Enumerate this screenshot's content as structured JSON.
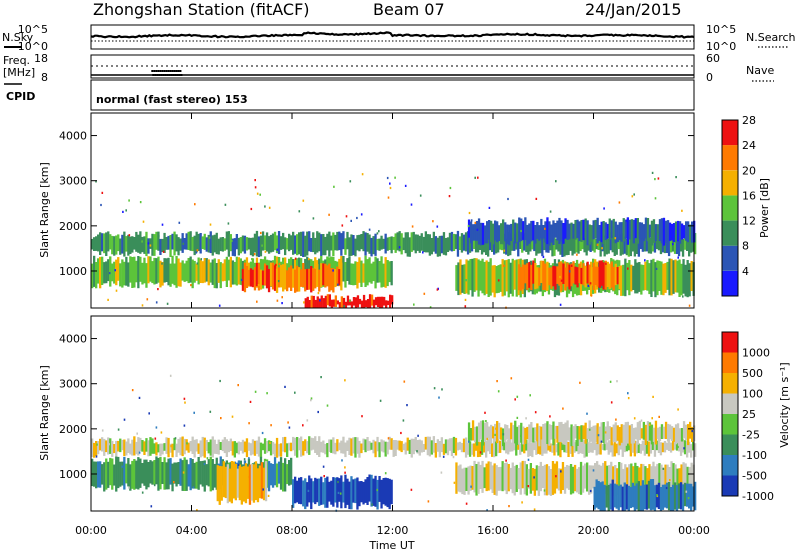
{
  "header": {
    "station": "Zhongshan Station (fitACF)",
    "beam": "Beam 07",
    "date": "24/Jan/2015"
  },
  "top_panel_a": {
    "left_label": "N.Sky",
    "right_label": "N.Search",
    "left_ticks": [
      "10^5",
      "10^0"
    ],
    "right_ticks": [
      "10^5",
      "10^0"
    ]
  },
  "top_panel_b": {
    "left_label_1": "Freq.",
    "left_label_2": "[MHz]",
    "right_label": "Nave",
    "left_ticks": [
      "18",
      "8"
    ],
    "right_ticks": [
      "60",
      "0"
    ]
  },
  "cpid": {
    "label": "CPID",
    "text": "normal (fast stereo) 153"
  },
  "panels": {
    "ylabel": "Slant Range [km]",
    "yticks": [
      "1000",
      "2000",
      "3000",
      "4000"
    ],
    "xticks": [
      "00:00",
      "04:00",
      "08:00",
      "12:00",
      "16:00",
      "20:00",
      "00:00"
    ],
    "xlabel": "Time UT"
  },
  "power_colorbar": {
    "label": "Power [dB]",
    "ticks": [
      "4",
      "8",
      "12",
      "16",
      "20",
      "24",
      "28"
    ],
    "colors": [
      "#1a1aff",
      "#2b55b5",
      "#3a8e5a",
      "#5cc43a",
      "#f5b000",
      "#ff7a00",
      "#ee1111"
    ]
  },
  "velocity_colorbar": {
    "label": "Velocity [m s⁻¹]",
    "ticks": [
      "1000",
      "500",
      "100",
      "25",
      "-25",
      "-100",
      "-500",
      "-1000"
    ],
    "colors": [
      "#1a3ab5",
      "#2e7dbf",
      "#3a8e5a",
      "#5cc43a",
      "#c8c8c0",
      "#f5b000",
      "#ff7a00",
      "#ee1111"
    ]
  },
  "chart_data": {
    "type": "heatmap",
    "title": "Zhongshan Station (fitACF) Beam 07",
    "xlabel": "Time UT",
    "ylabel": "Slant Range [km]",
    "xlim": [
      0,
      24
    ],
    "ylim": [
      180,
      4500
    ],
    "xtick_hours": [
      0,
      4,
      8,
      12,
      16,
      20,
      24
    ],
    "ytick_values": [
      1000,
      2000,
      3000,
      4000
    ],
    "power_bands": [
      {
        "from_h": 0,
        "to_h": 24,
        "ymin": 1400,
        "ymax": 1800,
        "level": 2
      },
      {
        "from_h": 0,
        "to_h": 12,
        "ymin": 700,
        "ymax": 1250,
        "level": 3
      },
      {
        "from_h": 6,
        "to_h": 10,
        "ymin": 600,
        "ymax": 1100,
        "level": 5
      },
      {
        "from_h": 8.5,
        "to_h": 12,
        "ymin": 180,
        "ymax": 400,
        "level": 6
      },
      {
        "from_h": 14.5,
        "to_h": 24,
        "ymin": 500,
        "ymax": 1200,
        "level": 3
      },
      {
        "from_h": 17,
        "to_h": 21,
        "ymin": 650,
        "ymax": 1150,
        "level": 5
      },
      {
        "from_h": 15,
        "to_h": 24,
        "ymin": 1650,
        "ymax": 2100,
        "level": 1
      }
    ],
    "velocity_bands": [
      {
        "from_h": 0,
        "to_h": 24,
        "ymin": 1450,
        "ymax": 1750,
        "level": 4
      },
      {
        "from_h": 0,
        "to_h": 8,
        "ymin": 700,
        "ymax": 1300,
        "level": 2
      },
      {
        "from_h": 8,
        "to_h": 12,
        "ymin": 300,
        "ymax": 900,
        "level": 0
      },
      {
        "from_h": 5,
        "to_h": 7,
        "ymin": 400,
        "ymax": 1200,
        "level": 5
      },
      {
        "from_h": 14.5,
        "to_h": 24,
        "ymin": 600,
        "ymax": 1200,
        "level": 4
      },
      {
        "from_h": 20,
        "to_h": 24,
        "ymin": 200,
        "ymax": 800,
        "level": 1
      },
      {
        "from_h": 15,
        "to_h": 24,
        "ymin": 1700,
        "ymax": 2100,
        "level": 4
      }
    ]
  }
}
